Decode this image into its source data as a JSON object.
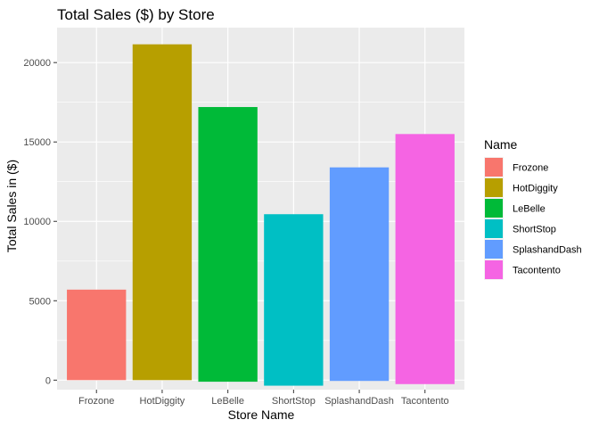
{
  "chart_data": {
    "type": "bar",
    "title": "Total Sales ($) by Store",
    "xlabel": "Store Name",
    "ylabel": "Total Sales in ($)",
    "categories": [
      "Frozone",
      "HotDiggity",
      "LeBelle",
      "ShortStop",
      "SplashandDash",
      "Tacontento"
    ],
    "bars": [
      {
        "category": "Frozone",
        "top": 5700,
        "bottom": 0
      },
      {
        "category": "HotDiggity",
        "top": 21150,
        "bottom": 0
      },
      {
        "category": "LeBelle",
        "top": 17200,
        "bottom": -100
      },
      {
        "category": "ShortStop",
        "top": 10450,
        "bottom": -350
      },
      {
        "category": "SplashandDash",
        "top": 13400,
        "bottom": -50
      },
      {
        "category": "Tacontento",
        "top": 15500,
        "bottom": -250
      }
    ],
    "ylim": [
      -600,
      22200
    ],
    "yticks": [
      0,
      5000,
      10000,
      15000,
      20000
    ],
    "grid": true,
    "legend": {
      "title": "Name",
      "placement": "right",
      "entries": [
        "Frozone",
        "HotDiggity",
        "LeBelle",
        "ShortStop",
        "SplashandDash",
        "Tacontento"
      ]
    },
    "colors": [
      "#F8766D",
      "#B79F00",
      "#00BA38",
      "#00BFC4",
      "#619CFF",
      "#F564E3"
    ],
    "panel_background": "#EBEBEB",
    "grid_color": "#FFFFFF"
  }
}
